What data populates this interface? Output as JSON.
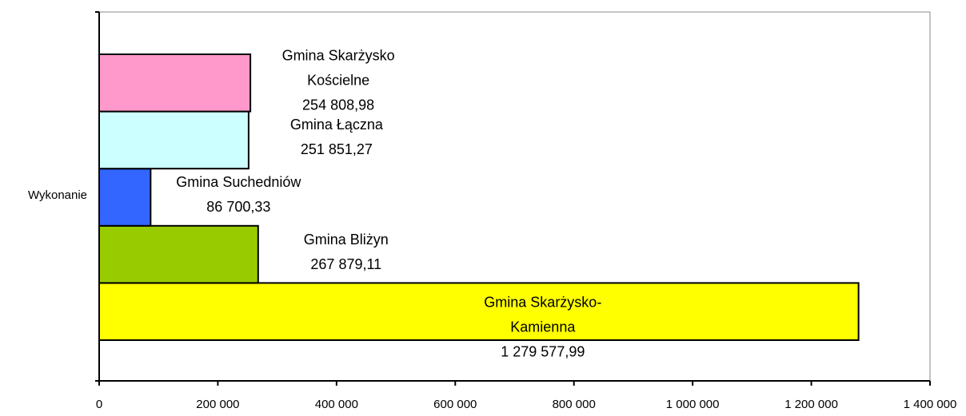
{
  "chart_data": {
    "type": "bar",
    "orientation": "horizontal",
    "categories": [
      "Wykonanie"
    ],
    "series": [
      {
        "name": "Gmina Skarżysko-Kamienna",
        "color": "#ffff00",
        "values": [
          1279577.99
        ],
        "value_labels": [
          "1 279 577,99"
        ]
      },
      {
        "name": "Gmina Bliżyn",
        "color": "#99cc00",
        "values": [
          267879.11
        ],
        "value_labels": [
          "267 879,11"
        ]
      },
      {
        "name": "Gmina Suchedniów",
        "color": "#3366ff",
        "values": [
          86700.33
        ],
        "value_labels": [
          "86 700,33"
        ]
      },
      {
        "name": "Gmina Łączna",
        "color": "#ccffff",
        "values": [
          251851.27
        ],
        "value_labels": [
          "251 851,27"
        ]
      },
      {
        "name": "Gmina Skarżysko Kościelne",
        "color": "#ff99cc",
        "values": [
          254808.98
        ],
        "value_labels": [
          "254 808,98"
        ]
      }
    ],
    "xlim": [
      0,
      1400000
    ],
    "xticks": [
      0,
      {
        "value": 200000,
        "label": "200 000"
      },
      {
        "value": 400000,
        "label": "400 000"
      },
      {
        "value": 600000,
        "label": "600 000"
      },
      {
        "value": 800000,
        "label": "800 000"
      },
      {
        "value": 1000000,
        "label": "1 000 000"
      },
      {
        "value": 1200000,
        "label": "1 200 000"
      },
      {
        "value": 1400000,
        "label": "1 400 000"
      }
    ]
  }
}
